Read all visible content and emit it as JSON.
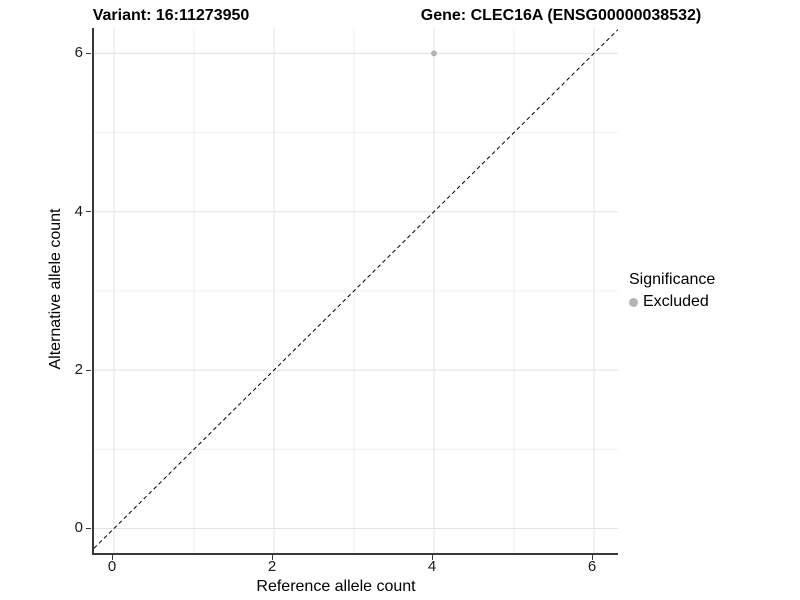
{
  "titles": {
    "variant": "Variant: 16:11273950",
    "gene": "Gene: CLEC16A (ENSG00000038532)"
  },
  "legend": {
    "title": "Significance",
    "items": [
      {
        "label": "Excluded",
        "color": "#b4b4b4"
      }
    ]
  },
  "chart_data": {
    "type": "scatter",
    "title_left": "Variant: 16:11273950",
    "title_right": "Gene: CLEC16A (ENSG00000038532)",
    "xlabel": "Reference allele count",
    "ylabel": "Alternative allele count",
    "xlim": [
      -0.25,
      6.3
    ],
    "ylim": [
      -0.31,
      6.32
    ],
    "x_ticks": [
      0,
      2,
      4,
      6
    ],
    "y_ticks": [
      0,
      2,
      4,
      6
    ],
    "x_minor_ticks": [
      1,
      3,
      5
    ],
    "y_minor_ticks": [
      1,
      3,
      5
    ],
    "grid": true,
    "legend_position": "right",
    "legend_title": "Significance",
    "series": [
      {
        "name": "Excluded",
        "color": "#b4b4b4",
        "points": [
          {
            "x": 4,
            "y": 6
          }
        ]
      }
    ],
    "reference_line": {
      "type": "identity",
      "style": "dashed",
      "color": "#000000"
    }
  },
  "colors": {
    "grid_major": "#e3e3e3",
    "grid_minor": "#f1f1f1",
    "axis_line": "#383838",
    "point": "#b4b4b4",
    "background": "#ffffff"
  }
}
